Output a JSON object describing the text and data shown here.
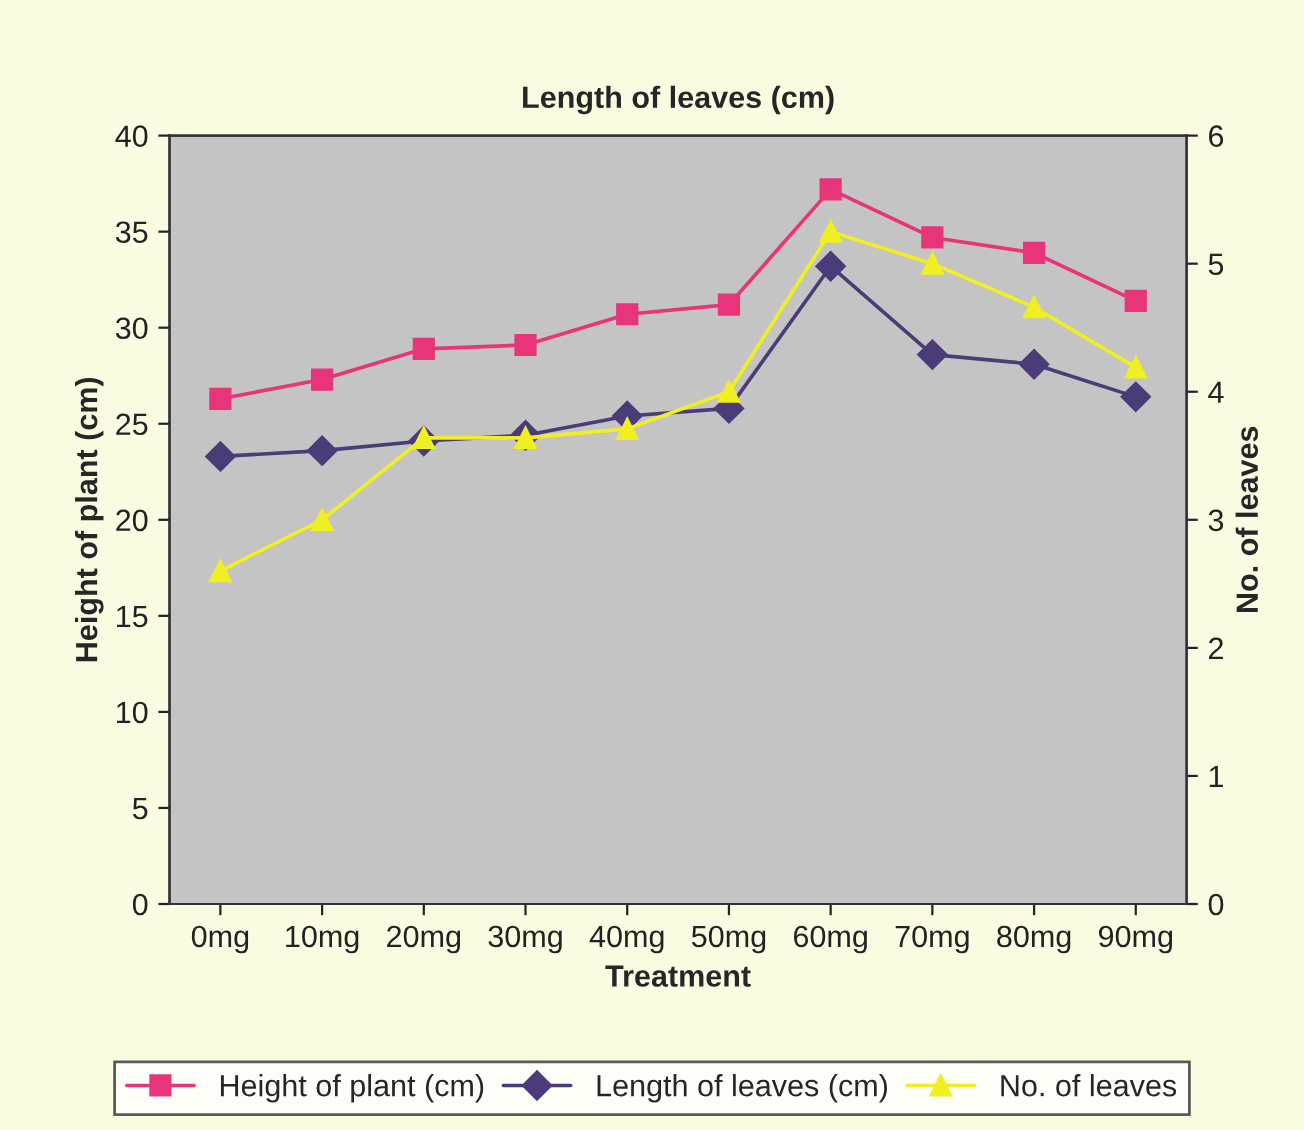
{
  "chart_data": {
    "type": "line",
    "title": "Length of leaves (cm)",
    "xlabel": "Treatment",
    "ylabel": "Height of plant (cm)",
    "y2label": "No. of leaves",
    "categories": [
      "0mg",
      "10mg",
      "20mg",
      "30mg",
      "40mg",
      "50mg",
      "60mg",
      "70mg",
      "80mg",
      "90mg"
    ],
    "series": [
      {
        "name": "Height of plant (cm)",
        "color": "#e8357a",
        "marker": "square",
        "values": [
          26.3,
          27.3,
          28.9,
          29.1,
          30.7,
          31.2,
          37.2,
          34.7,
          33.9,
          31.4
        ]
      },
      {
        "name": "Length of leaves (cm)",
        "color": "#4b3b78",
        "marker": "diamond",
        "values": [
          23.3,
          23.6,
          24.1,
          24.4,
          25.4,
          25.8,
          33.2,
          28.6,
          28.1,
          26.4
        ]
      },
      {
        "name": "No. of leaves",
        "color": "#f0f020",
        "marker": "triangle",
        "axis": "y2",
        "values": [
          2.6,
          3.0,
          3.64,
          3.64,
          3.71,
          4.0,
          5.25,
          5.0,
          4.66,
          4.19
        ]
      }
    ],
    "ylim": [
      0,
      40
    ],
    "yticks": [
      0,
      5,
      10,
      15,
      20,
      25,
      30,
      35,
      40
    ],
    "y2lim": [
      0,
      6
    ],
    "y2ticks": [
      0,
      1,
      2,
      3,
      4,
      5,
      6
    ],
    "grid": false,
    "legend": "bottom",
    "line_style": "solid"
  }
}
